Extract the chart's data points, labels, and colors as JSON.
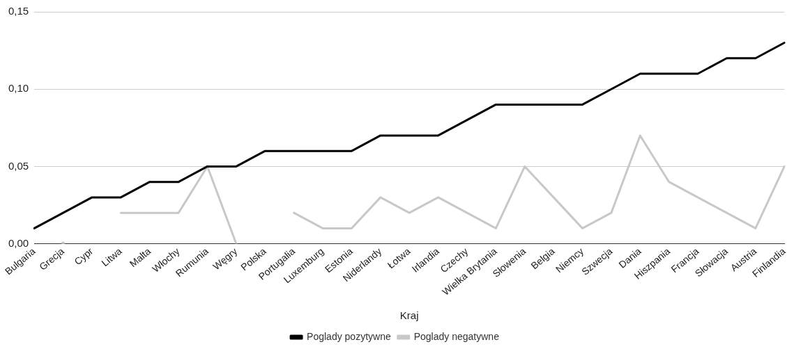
{
  "chart_data": {
    "type": "line",
    "xlabel": "Kraj",
    "categories": [
      "Bulgaria",
      "Grecja",
      "Cypr",
      "Litwa",
      "Malta",
      "Włochy",
      "Rumunia",
      "Węgry",
      "Polska",
      "Portugalia",
      "Luxemburg",
      "Estonia",
      "Niderlandy",
      "Łotwa",
      "Irlandia",
      "Czechy",
      "Wielka Brytania",
      "Słowenia",
      "Belgia",
      "Niemcy",
      "Szwecja",
      "Dania",
      "Hiszpania",
      "Francja",
      "Słowacja",
      "Austria",
      "Finlandia"
    ],
    "series": [
      {
        "name": "Poglady pozytywne",
        "color": "#000000",
        "values": [
          0.01,
          0.02,
          0.03,
          0.03,
          0.04,
          0.04,
          0.05,
          0.05,
          0.06,
          0.06,
          0.06,
          0.06,
          0.07,
          0.07,
          0.07,
          0.08,
          0.09,
          0.09,
          0.09,
          0.09,
          0.1,
          0.11,
          0.11,
          0.11,
          0.12,
          0.12,
          0.13
        ]
      },
      {
        "name": "Poglady negatywne",
        "color": "#c8c8c8",
        "values": [
          null,
          0.0,
          null,
          0.02,
          0.02,
          0.02,
          0.05,
          0.0,
          null,
          0.02,
          0.01,
          0.01,
          0.03,
          0.02,
          0.03,
          0.02,
          0.01,
          0.05,
          0.03,
          0.01,
          0.02,
          0.07,
          0.04,
          0.03,
          0.02,
          0.01,
          0.05
        ]
      }
    ],
    "ylim": [
      0,
      0.15
    ],
    "yticks": [
      {
        "value": 0,
        "label": "0,00"
      },
      {
        "value": 0.05,
        "label": "0,05"
      },
      {
        "value": 0.1,
        "label": "0,10"
      },
      {
        "value": 0.15,
        "label": "0,15"
      }
    ],
    "grid": "y",
    "legend": "bottom",
    "marker": "none",
    "line_style": "solid"
  }
}
